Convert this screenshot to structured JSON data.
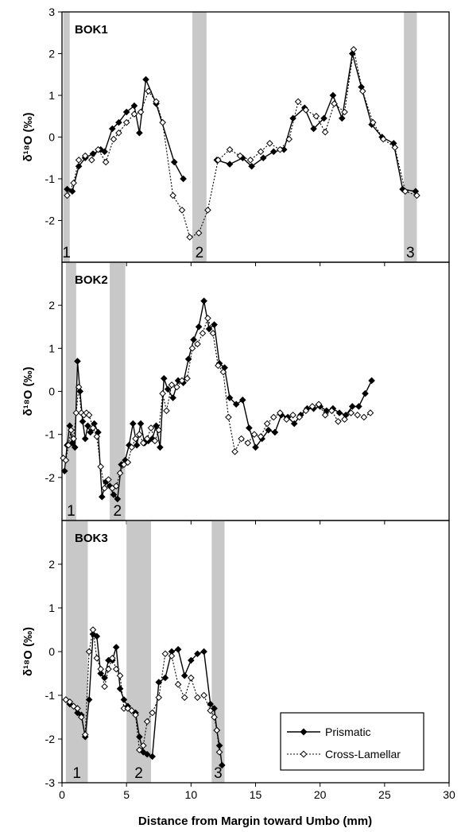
{
  "figure": {
    "xlabel": "Distance from Margin toward Umbo (mm)",
    "x_ticks": [
      0,
      5,
      10,
      15,
      20,
      25,
      30
    ],
    "xlim": [
      0,
      30
    ]
  },
  "legend": {
    "placement": "lower-right of BOK3 panel",
    "entries": [
      {
        "label": "Prismatic",
        "style": "solid line, filled diamond"
      },
      {
        "label": "Cross-Lamellar",
        "style": "dotted line, open diamond"
      }
    ]
  },
  "colors": {
    "band": "#c8c8c8",
    "prismatic": "#000000",
    "cross": "#000000"
  },
  "chart_data": [
    {
      "type": "line",
      "panel": "BOK1",
      "ylabel": "δ¹⁸O (‰)",
      "ylim": [
        -3,
        3
      ],
      "y_ticks": [
        3,
        2,
        1,
        0,
        -1,
        -2
      ],
      "bands": [
        {
          "label": "1",
          "x0": 0.1,
          "x1": 0.6
        },
        {
          "label": "2",
          "x0": 10.1,
          "x1": 11.2
        },
        {
          "label": "3",
          "x0": 26.5,
          "x1": 27.5
        }
      ],
      "series": [
        {
          "name": "Prismatic",
          "x": [
            0.4,
            0.8,
            1.3,
            1.8,
            2.4,
            3.0,
            3.3,
            3.9,
            4.4,
            5.0,
            5.6,
            6.0,
            6.5,
            7.3,
            8.7,
            9.4
          ],
          "y": [
            -1.25,
            -1.3,
            -0.7,
            -0.5,
            -0.4,
            -0.3,
            -0.35,
            0.2,
            0.35,
            0.6,
            0.75,
            0.1,
            1.38,
            0.8,
            -0.6,
            -1.0
          ]
        },
        {
          "name": "Prismatic",
          "x": [
            12.0,
            13.0,
            14.0,
            14.7,
            15.6,
            16.4,
            17.2,
            17.9,
            18.8,
            19.5,
            20.3,
            21.0,
            21.7,
            22.5,
            23.2,
            24.0,
            24.8,
            25.7,
            26.4,
            27.4
          ],
          "y": [
            -0.55,
            -0.65,
            -0.5,
            -0.7,
            -0.5,
            -0.35,
            -0.3,
            0.45,
            0.7,
            0.2,
            0.45,
            1.0,
            0.45,
            2.0,
            1.2,
            0.3,
            0.0,
            -0.15,
            -1.25,
            -1.3
          ]
        },
        {
          "name": "Cross-Lamellar",
          "x": [
            0.4,
            0.9,
            1.3,
            1.8,
            2.3,
            2.8,
            3.4,
            4.0,
            4.4,
            5.0,
            5.6,
            6.1,
            6.7,
            7.3,
            7.8,
            8.6,
            9.3,
            9.9,
            10.6,
            11.3,
            12.1,
            13.0,
            13.8,
            14.6,
            15.4,
            16.1,
            16.9,
            17.6,
            18.3,
            18.9,
            19.7,
            20.4,
            21.1,
            21.9,
            22.6,
            23.3,
            24.1,
            24.9,
            25.8,
            26.6,
            27.5
          ],
          "y": [
            -1.4,
            -1.1,
            -0.55,
            -0.45,
            -0.55,
            -0.3,
            -0.6,
            -0.05,
            0.1,
            0.35,
            0.55,
            0.6,
            1.1,
            0.85,
            0.35,
            -1.4,
            -1.75,
            -2.4,
            -2.3,
            -1.75,
            -0.55,
            -0.3,
            -0.45,
            -0.55,
            -0.35,
            -0.15,
            -0.3,
            -0.05,
            0.85,
            0.65,
            0.5,
            0.12,
            0.8,
            0.6,
            2.1,
            1.1,
            0.35,
            -0.05,
            -0.25,
            -1.3,
            -1.4
          ]
        }
      ]
    },
    {
      "type": "line",
      "panel": "BOK2",
      "ylabel": "δ¹⁸O (‰)",
      "ylim": [
        -3,
        3
      ],
      "y_ticks": [
        2,
        1,
        0,
        -1,
        -2
      ],
      "bands": [
        {
          "label": "1",
          "x0": 0.3,
          "x1": 1.1
        },
        {
          "label": "2",
          "x0": 3.7,
          "x1": 4.9
        }
      ],
      "series": [
        {
          "name": "Prismatic",
          "x": [
            0.2,
            0.4,
            0.6,
            0.8,
            1.0,
            1.2,
            1.4,
            1.6,
            1.8,
            2.0,
            2.2,
            2.5,
            2.8,
            3.1,
            3.4,
            3.7,
            4.0,
            4.3,
            4.6,
            4.9,
            5.2,
            5.5,
            5.8,
            6.1,
            6.4,
            6.7,
            7.0,
            7.3,
            7.6,
            7.9,
            8.2,
            8.6,
            9.0,
            9.4,
            9.8,
            10.2,
            10.6,
            11.0,
            11.4,
            11.8,
            12.2,
            12.6,
            13.0,
            13.5,
            14.0,
            14.5,
            15.0,
            15.5,
            16.0,
            16.5,
            17.0,
            17.5,
            18.0,
            18.5,
            19.0,
            19.5,
            20.0,
            20.5,
            21.0,
            21.5,
            22.0,
            22.5,
            23.0,
            23.5,
            24.0
          ],
          "y": [
            -1.85,
            -1.25,
            -0.8,
            -1.2,
            -1.3,
            0.7,
            0.0,
            -0.7,
            -1.1,
            -0.8,
            -0.95,
            -0.75,
            -0.95,
            -2.45,
            -2.1,
            -2.2,
            -2.4,
            -2.5,
            -1.7,
            -1.6,
            -1.25,
            -0.75,
            -1.25,
            -0.75,
            -1.2,
            -1.15,
            -1.1,
            -0.8,
            -1.3,
            0.3,
            0.05,
            -0.15,
            0.25,
            0.2,
            0.75,
            1.2,
            1.5,
            2.1,
            1.45,
            1.55,
            0.65,
            0.55,
            -0.15,
            -0.3,
            -0.2,
            -0.85,
            -1.3,
            -1.1,
            -0.9,
            -0.95,
            -0.55,
            -0.6,
            -0.75,
            -0.55,
            -0.4,
            -0.4,
            -0.35,
            -0.45,
            -0.4,
            -0.5,
            -0.55,
            -0.35,
            -0.35,
            -0.05,
            0.25
          ]
        },
        {
          "name": "Cross-Lamellar",
          "x": [
            0.1,
            0.3,
            0.5,
            0.7,
            0.9,
            1.1,
            1.3,
            1.5,
            1.7,
            1.9,
            2.1,
            2.4,
            2.7,
            3.0,
            3.3,
            3.6,
            3.9,
            4.2,
            4.5,
            4.8,
            5.1,
            5.4,
            5.7,
            6.0,
            6.3,
            6.6,
            6.9,
            7.2,
            7.5,
            7.8,
            8.1,
            8.5,
            8.9,
            9.3,
            9.7,
            10.1,
            10.5,
            10.9,
            11.3,
            11.7,
            12.1,
            12.5,
            12.9,
            13.4,
            13.9,
            14.4,
            14.9,
            15.4,
            15.9,
            16.4,
            16.9,
            17.4,
            17.9,
            18.4,
            18.9,
            19.4,
            19.9,
            20.4,
            20.9,
            21.4,
            21.9,
            22.4,
            22.9,
            23.4,
            23.9
          ],
          "y": [
            -1.55,
            -1.6,
            -1.25,
            -0.9,
            -1.1,
            -0.5,
            0.1,
            -0.5,
            -0.55,
            -0.5,
            -0.55,
            -0.85,
            -1.05,
            -1.75,
            -2.25,
            -2.05,
            -2.25,
            -2.2,
            -1.9,
            -1.7,
            -1.65,
            -1.3,
            -1.1,
            -1.0,
            -1.2,
            -1.1,
            -0.85,
            -1.15,
            -0.9,
            -0.05,
            -0.45,
            0.15,
            0.1,
            0.25,
            0.3,
            1.0,
            1.1,
            1.35,
            1.7,
            1.35,
            0.6,
            0.45,
            -0.6,
            -1.4,
            -1.1,
            -1.2,
            -1.0,
            -1.05,
            -0.75,
            -0.6,
            -0.5,
            -0.65,
            -0.55,
            -0.6,
            -0.45,
            -0.35,
            -0.3,
            -0.55,
            -0.45,
            -0.7,
            -0.65,
            -0.5,
            -0.55,
            -0.6,
            -0.5
          ]
        }
      ]
    },
    {
      "type": "line",
      "panel": "BOK3",
      "ylabel": "δ¹⁸O (‰)",
      "ylim": [
        -3,
        3
      ],
      "y_ticks": [
        2,
        1,
        0,
        -1,
        -2,
        -3
      ],
      "bands": [
        {
          "label": "1",
          "x0": 0.3,
          "x1": 2.0
        },
        {
          "label": "2",
          "x0": 5.0,
          "x1": 6.9
        },
        {
          "label": "3",
          "x0": 11.6,
          "x1": 12.6
        }
      ],
      "series": [
        {
          "name": "Prismatic",
          "x": [
            0.3,
            0.6,
            0.9,
            1.2,
            1.5,
            1.8,
            2.1,
            2.4,
            2.7,
            3.0,
            3.3,
            3.6,
            3.9,
            4.2,
            4.5,
            4.8,
            5.1,
            5.4,
            5.7,
            6.0,
            6.3,
            6.6,
            7.0,
            7.5,
            8.0,
            8.5,
            9.0,
            9.5,
            10.0,
            10.5,
            11.0,
            11.5,
            11.8,
            12.0,
            12.2,
            12.4
          ],
          "y": [
            -1.1,
            -1.2,
            -1.25,
            -1.4,
            -1.45,
            -1.95,
            -1.1,
            0.4,
            0.35,
            -0.5,
            -0.6,
            -0.2,
            -0.2,
            0.1,
            -0.85,
            -1.1,
            -1.25,
            -1.35,
            -1.4,
            -1.95,
            -2.3,
            -2.35,
            -2.4,
            -0.7,
            -0.6,
            0.0,
            0.05,
            -0.55,
            -0.2,
            -0.05,
            0.0,
            -1.2,
            -1.3,
            -1.8,
            -2.15,
            -2.6
          ]
        },
        {
          "name": "Cross-Lamellar",
          "x": [
            0.3,
            0.6,
            0.9,
            1.2,
            1.5,
            1.8,
            2.1,
            2.4,
            2.7,
            3.0,
            3.3,
            3.6,
            3.9,
            4.2,
            4.5,
            4.8,
            5.1,
            5.4,
            5.7,
            6.0,
            6.3,
            6.6,
            7.0,
            7.5,
            8.0,
            8.5,
            9.0,
            9.5,
            10.0,
            10.5,
            11.0,
            11.5,
            11.8,
            12.0,
            12.2
          ],
          "y": [
            -1.1,
            -1.15,
            -1.25,
            -1.3,
            -1.5,
            -1.9,
            0.0,
            0.5,
            -0.15,
            -0.4,
            -0.8,
            -0.4,
            -0.15,
            -0.4,
            -0.55,
            -1.3,
            -1.3,
            -1.35,
            -1.45,
            -2.25,
            -2.15,
            -1.6,
            -1.4,
            -1.05,
            -0.05,
            -0.1,
            -0.75,
            -1.05,
            -0.6,
            -1.05,
            -1.0,
            -1.35,
            -1.5,
            -1.8,
            -2.3
          ]
        }
      ]
    }
  ]
}
